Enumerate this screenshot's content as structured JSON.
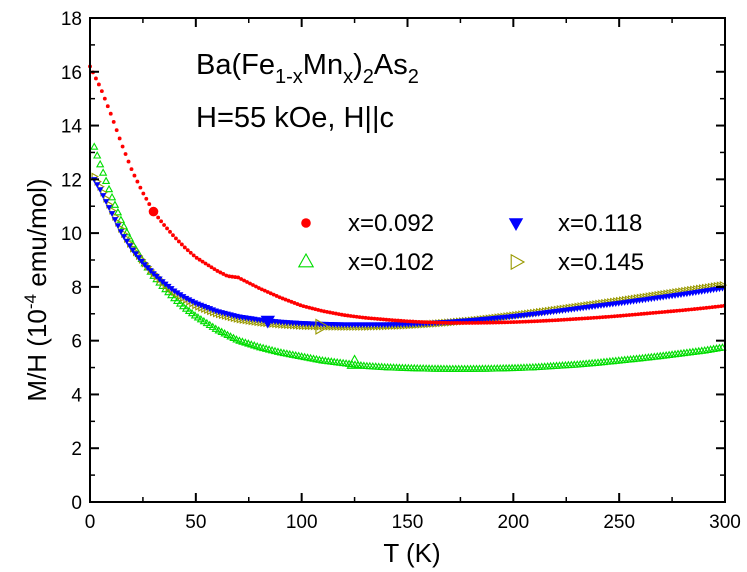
{
  "chart_data": {
    "type": "scatter",
    "xlabel": "T (K)",
    "ylabel_parts": {
      "prefix": "M/H (10",
      "exp": "-4",
      "suffix": " emu/mol)"
    },
    "xlim": [
      0,
      300
    ],
    "ylim": [
      0,
      18
    ],
    "x_ticks": [
      0,
      50,
      100,
      150,
      200,
      250,
      300
    ],
    "y_ticks": [
      0,
      2,
      4,
      6,
      8,
      10,
      12,
      14,
      16,
      18
    ],
    "grid": false,
    "legend_placement": "right-center",
    "annotation": {
      "formula_parts": [
        "Ba(Fe",
        "1-x",
        "Mn",
        "x",
        ")",
        "2",
        "As",
        "2"
      ],
      "line2": "H=55 kOe, H||c"
    },
    "series": [
      {
        "name": "x=0.092",
        "marker": "filled-circle",
        "color": "#ff0000",
        "x": [
          0,
          5,
          10,
          15,
          20,
          25,
          30,
          35,
          40,
          45,
          50,
          55,
          60,
          65,
          70,
          75,
          80,
          90,
          100,
          110,
          120,
          130,
          140,
          150,
          160,
          170,
          180,
          190,
          200,
          210,
          220,
          230,
          240,
          250,
          260,
          270,
          280,
          290,
          300
        ],
        "y": [
          16.2,
          15.4,
          14.4,
          13.3,
          12.3,
          11.5,
          10.8,
          10.3,
          9.85,
          9.45,
          9.1,
          8.85,
          8.6,
          8.4,
          8.35,
          8.15,
          7.95,
          7.6,
          7.3,
          7.1,
          6.95,
          6.85,
          6.78,
          6.72,
          6.68,
          6.66,
          6.66,
          6.67,
          6.69,
          6.72,
          6.76,
          6.81,
          6.86,
          6.92,
          6.99,
          7.06,
          7.13,
          7.21,
          7.3
        ]
      },
      {
        "name": "x=0.102",
        "marker": "open-triangle-up",
        "color": "#00dd00",
        "x": [
          2,
          5,
          10,
          15,
          20,
          25,
          30,
          35,
          40,
          45,
          50,
          60,
          70,
          80,
          90,
          100,
          110,
          120,
          130,
          140,
          150,
          160,
          170,
          180,
          190,
          200,
          210,
          220,
          230,
          240,
          250,
          260,
          270,
          280,
          290,
          300
        ],
        "y": [
          13.2,
          12.5,
          11.4,
          10.4,
          9.6,
          8.95,
          8.4,
          7.95,
          7.55,
          7.2,
          6.9,
          6.4,
          6.0,
          5.75,
          5.55,
          5.4,
          5.25,
          5.15,
          5.05,
          5.0,
          4.97,
          4.95,
          4.94,
          4.94,
          4.95,
          4.97,
          5.0,
          5.05,
          5.1,
          5.17,
          5.25,
          5.33,
          5.42,
          5.52,
          5.62,
          5.75
        ]
      },
      {
        "name": "x=0.118",
        "marker": "filled-triangle-down",
        "color": "#0000ff",
        "x": [
          2,
          5,
          10,
          15,
          20,
          25,
          30,
          35,
          40,
          45,
          50,
          60,
          70,
          80,
          90,
          100,
          110,
          120,
          130,
          140,
          150,
          160,
          170,
          180,
          190,
          200,
          210,
          220,
          230,
          240,
          250,
          260,
          270,
          280,
          290,
          300
        ],
        "y": [
          12.0,
          11.6,
          10.8,
          10.0,
          9.4,
          8.9,
          8.5,
          8.15,
          7.85,
          7.6,
          7.4,
          7.1,
          6.9,
          6.78,
          6.7,
          6.65,
          6.62,
          6.6,
          6.6,
          6.6,
          6.62,
          6.65,
          6.7,
          6.76,
          6.83,
          6.91,
          7.0,
          7.1,
          7.2,
          7.3,
          7.4,
          7.51,
          7.62,
          7.73,
          7.85,
          7.97
        ]
      },
      {
        "name": "x=0.145",
        "marker": "open-triangle-right",
        "color": "#999900",
        "x": [
          2,
          5,
          10,
          15,
          20,
          25,
          30,
          35,
          40,
          45,
          50,
          60,
          70,
          80,
          90,
          100,
          110,
          120,
          130,
          140,
          150,
          160,
          170,
          180,
          190,
          200,
          210,
          220,
          230,
          240,
          250,
          260,
          270,
          280,
          290,
          300
        ],
        "y": [
          12.1,
          11.7,
          10.9,
          10.1,
          9.45,
          8.95,
          8.5,
          8.1,
          7.8,
          7.55,
          7.3,
          7.0,
          6.8,
          6.68,
          6.6,
          6.55,
          6.53,
          6.52,
          6.52,
          6.54,
          6.57,
          6.62,
          6.68,
          6.75,
          6.84,
          6.94,
          7.04,
          7.15,
          7.26,
          7.37,
          7.48,
          7.6,
          7.72,
          7.84,
          7.96,
          8.08
        ]
      }
    ],
    "highlight_points": [
      {
        "series": 0,
        "x": 30,
        "y": 10.8
      },
      {
        "series": 1,
        "x": 125,
        "y": 5.15
      },
      {
        "series": 2,
        "x": 84,
        "y": 6.75
      },
      {
        "series": 3,
        "x": 109,
        "y": 6.52
      }
    ]
  }
}
